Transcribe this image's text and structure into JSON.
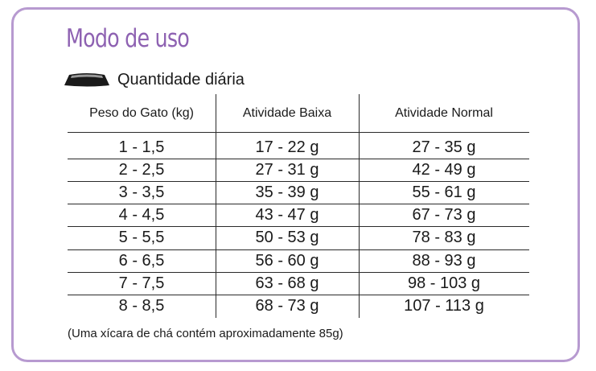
{
  "title": "Modo de uso",
  "subtitle": "Quantidade diária",
  "headers": [
    "Peso do Gato (kg)",
    "Atividade Baixa",
    "Atividade Normal"
  ],
  "rows": [
    [
      "1 - 1,5",
      "17 - 22 g",
      "27 - 35 g"
    ],
    [
      "2 - 2,5",
      "27 - 31 g",
      "42 - 49 g"
    ],
    [
      "3 - 3,5",
      "35 - 39 g",
      "55 - 61 g"
    ],
    [
      "4 - 4,5",
      "43 - 47 g",
      "67 - 73 g"
    ],
    [
      "5 - 5,5",
      "50 - 53 g",
      "78 - 83 g"
    ],
    [
      "6 - 6,5",
      "56 - 60 g",
      "88 - 93 g"
    ],
    [
      "7 - 7,5",
      "63 - 68 g",
      "98 - 103 g"
    ],
    [
      "8 - 8,5",
      "68 - 73 g",
      "107 - 113 g"
    ]
  ],
  "note": "(Uma xícara de chá contém aproximadamente 85g)",
  "colors": {
    "accent": "#8e62b2",
    "border": "#b79ad0",
    "text": "#1a1a1a"
  },
  "icons": {
    "bowl": "food-bowl-icon"
  }
}
